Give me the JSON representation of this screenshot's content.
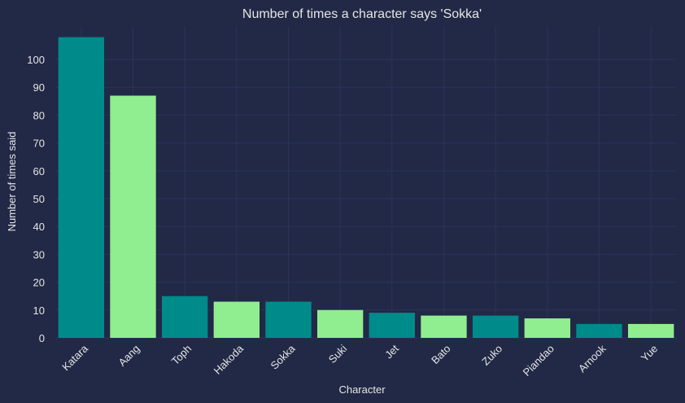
{
  "chart_data": {
    "type": "bar",
    "title": "Number of times a character says 'Sokka'",
    "xlabel": "Character",
    "ylabel": "Number of times said",
    "categories": [
      "Katara",
      "Aang",
      "Toph",
      "Hakoda",
      "Sokka",
      "Suki",
      "Jet",
      "Bato",
      "Zuko",
      "Piandao",
      "Arnook",
      "Yue"
    ],
    "values": [
      108,
      87,
      15,
      13,
      13,
      10,
      9,
      8,
      8,
      7,
      5,
      5
    ],
    "ylim": [
      0,
      112
    ],
    "yticks": [
      0,
      10,
      20,
      30,
      40,
      50,
      60,
      70,
      80,
      90,
      100
    ],
    "grid": true,
    "legend": "none",
    "colors": [
      "#008B8B",
      "#90EE90"
    ]
  }
}
